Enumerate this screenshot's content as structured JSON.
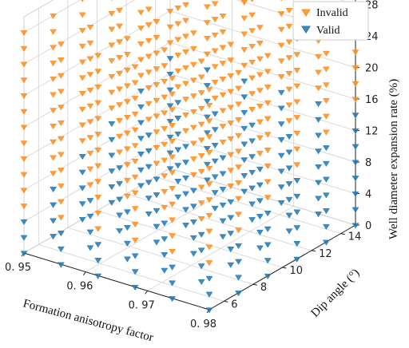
{
  "chart_data": {
    "type": "scatter",
    "projection": "3d",
    "xlabel": "Formation anisotropy factor",
    "ylabel": "Dip angle (°)",
    "zlabel": "Well diameter expansion rate (%)",
    "xlim": [
      0.95,
      0.98
    ],
    "ylim": [
      5,
      15
    ],
    "zlim": [
      0,
      30
    ],
    "x_ticks": [
      "0. 95",
      "0. 96",
      "0. 97",
      "0. 98"
    ],
    "y_ticks": [
      "6",
      "8",
      "10",
      "12",
      "14"
    ],
    "z_ticks": [
      "0",
      "4",
      "8",
      "12",
      "16",
      "20",
      "24",
      "28"
    ],
    "grid": true,
    "legend_position": "top-right",
    "marker": "triangle-down",
    "x_values": [
      0.95,
      0.956,
      0.962,
      0.968,
      0.974,
      0.98
    ],
    "y_values": [
      5,
      7,
      9,
      11,
      13,
      15
    ],
    "z_values": [
      0,
      2,
      4,
      6,
      8,
      10,
      12,
      14,
      16,
      18,
      20,
      22,
      24,
      26,
      28
    ],
    "valid_threshold_by_dip_angle": [
      {
        "y": 5,
        "max_valid_z": 4
      },
      {
        "y": 7,
        "max_valid_z": 6
      },
      {
        "y": 9,
        "max_valid_z": 8
      },
      {
        "y": 11,
        "max_valid_z": 10
      },
      {
        "y": 13,
        "max_valid_z": 12
      },
      {
        "y": 15,
        "max_valid_z": 14
      }
    ],
    "series": [
      {
        "name": "Invalid",
        "color": "#ff8c1a",
        "condition": "z > max_valid_z"
      },
      {
        "name": "Valid",
        "color": "#1f77b4",
        "condition": "z <= max_valid_z"
      }
    ]
  }
}
